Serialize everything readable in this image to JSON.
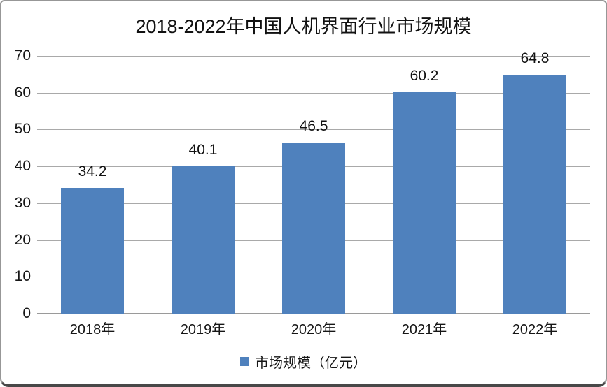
{
  "chart_data": {
    "type": "bar",
    "title": "2018-2022年中国人机界面行业市场规模",
    "categories": [
      "2018年",
      "2019年",
      "2020年",
      "2021年",
      "2022年"
    ],
    "values": [
      34.2,
      40.1,
      46.5,
      60.2,
      64.8
    ],
    "data_labels": [
      "34.2",
      "40.1",
      "46.5",
      "60.2",
      "64.8"
    ],
    "series_name": "市场规模（亿元）",
    "xlabel": "",
    "ylabel": "",
    "ylim": [
      0,
      70
    ],
    "yticks": [
      0,
      10,
      20,
      30,
      40,
      50,
      60,
      70
    ],
    "grid": true,
    "legend_position": "bottom",
    "bar_color": "#4F81BD",
    "gridline_color": "#a9a9a9",
    "axis_line_color": "#9a9a9a"
  }
}
